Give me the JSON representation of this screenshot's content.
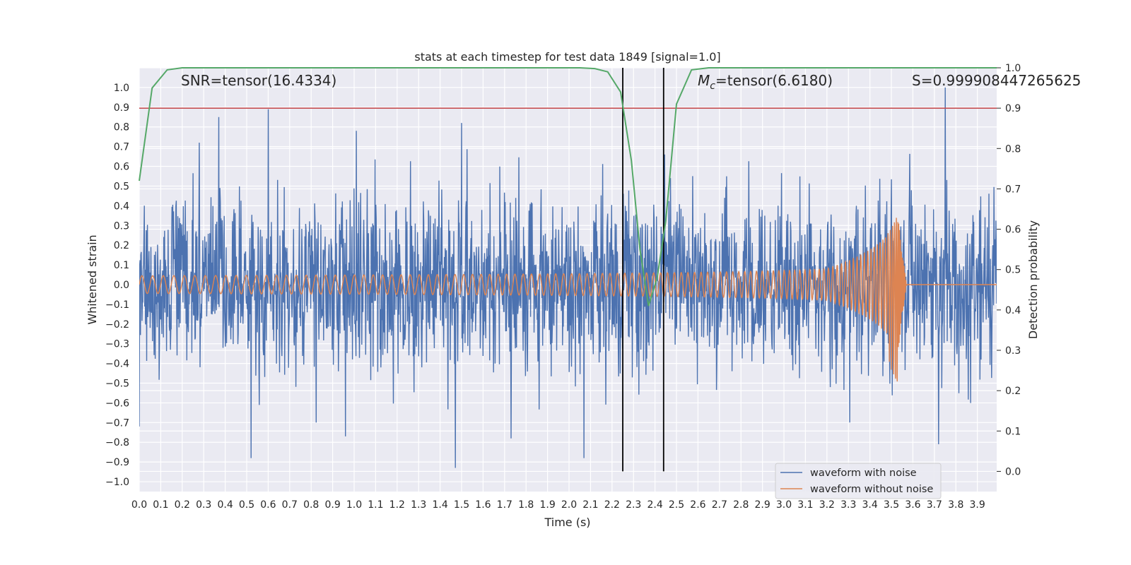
{
  "chart_data": {
    "type": "line",
    "title": "stats at each timestep for test data 1849 [signal=1.0]",
    "xlabel": "Time (s)",
    "ylabel": "Whitened strain",
    "y2label": "Detection probability",
    "xlim": [
      0.0,
      3.99
    ],
    "ylim": [
      -1.05,
      1.1
    ],
    "y2lim": [
      -0.05,
      1.0
    ],
    "x_ticks": [
      "0.0",
      "0.1",
      "0.2",
      "0.3",
      "0.4",
      "0.5",
      "0.6",
      "0.7",
      "0.8",
      "0.9",
      "1.0",
      "1.1",
      "1.2",
      "1.3",
      "1.4",
      "1.5",
      "1.6",
      "1.7",
      "1.8",
      "1.9",
      "2.0",
      "2.1",
      "2.2",
      "2.3",
      "2.4",
      "2.5",
      "2.6",
      "2.7",
      "2.8",
      "2.9",
      "3.0",
      "3.1",
      "3.2",
      "3.3",
      "3.4",
      "3.5",
      "3.6",
      "3.7",
      "3.8",
      "3.9"
    ],
    "y_ticks": [
      "1.0",
      "0.9",
      "0.8",
      "0.7",
      "0.6",
      "0.5",
      "0.4",
      "0.3",
      "0.2",
      "0.1",
      "0.0",
      "−0.1",
      "−0.2",
      "−0.3",
      "−0.4",
      "−0.5",
      "−0.6",
      "−0.7",
      "−0.8",
      "−0.9",
      "−1.0"
    ],
    "y2_ticks": [
      "1.0",
      "0.9",
      "0.8",
      "0.7",
      "0.6",
      "0.5",
      "0.4",
      "0.3",
      "0.2",
      "0.1",
      "0.0"
    ],
    "annotations": {
      "snr": "SNR=tensor(16.4334)",
      "mc_symbol": "M",
      "mc_sub": "c",
      "mc_value": "=tensor(6.6180)",
      "s": "S=0.999908447265625"
    },
    "threshold": {
      "value": 0.9,
      "axis": "y2",
      "color": "#c44e52"
    },
    "vertical_lines": [
      2.25,
      2.44
    ],
    "colors": {
      "noise": "#4c72b0",
      "clean": "#dd8452",
      "prob": "#55a868",
      "threshold": "#c44e52",
      "vline": "#000000",
      "grid": "#ffffff",
      "background": "#eaeaf2"
    },
    "series": [
      {
        "name": "waveform with noise",
        "kind": "noise",
        "std": 0.22,
        "spikes": [
          [
            0.37,
            0.85
          ],
          [
            0.6,
            0.89
          ],
          [
            1.01,
            0.78
          ],
          [
            1.5,
            0.82
          ],
          [
            3.75,
            1.0
          ],
          [
            0.52,
            -0.88
          ],
          [
            1.47,
            -0.93
          ],
          [
            2.07,
            -0.88
          ],
          [
            3.72,
            -0.81
          ],
          [
            0.96,
            -0.77
          ],
          [
            1.73,
            -0.78
          ],
          [
            0.0,
            -0.72
          ]
        ]
      },
      {
        "name": "waveform without noise",
        "kind": "chirp",
        "merger_time": 3.53,
        "ringdown_end": 3.57,
        "amp_start": 0.045,
        "amp_peak": 0.35,
        "min_amp": -0.55
      },
      {
        "name": "detection probability",
        "kind": "prob",
        "x": [
          0.0,
          0.06,
          0.13,
          0.2,
          0.3,
          0.5,
          1.0,
          1.5,
          2.0,
          2.05,
          2.12,
          2.18,
          2.24,
          2.29,
          2.33,
          2.37,
          2.41,
          2.45,
          2.5,
          2.57,
          2.65,
          3.0,
          3.5,
          3.99
        ],
        "y": [
          0.72,
          0.95,
          0.995,
          1.0,
          1.0,
          1.0,
          1.0,
          1.0,
          1.0,
          1.0,
          0.998,
          0.99,
          0.94,
          0.77,
          0.55,
          0.41,
          0.48,
          0.62,
          0.91,
          0.995,
          1.0,
          1.0,
          1.0,
          1.0
        ]
      }
    ],
    "legend": {
      "position": "bottom-right",
      "entries": [
        "waveform with noise",
        "waveform without noise"
      ]
    }
  }
}
